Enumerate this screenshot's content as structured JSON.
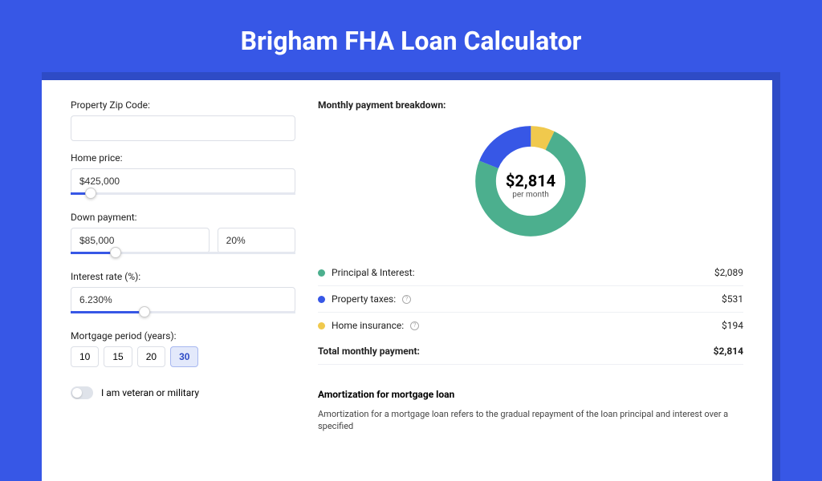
{
  "header": {
    "title": "Brigham FHA Loan Calculator"
  },
  "colors": {
    "page_bg": "#3757e6",
    "shadow_bg": "#2e4bc6",
    "card_bg": "#ffffff",
    "accent": "#3757e6",
    "slice_green": "#4caf8e",
    "slice_blue": "#3757e6",
    "slice_yellow": "#f0c94d",
    "border": "#dcdfe6"
  },
  "form": {
    "zip": {
      "label": "Property Zip Code:",
      "value": ""
    },
    "home_price": {
      "label": "Home price:",
      "value": "$425,000",
      "slider_pos_pct": 9
    },
    "down_payment": {
      "label": "Down payment:",
      "amount": "$85,000",
      "pct": "20%",
      "slider_pos_pct": 20
    },
    "interest_rate": {
      "label": "Interest rate (%):",
      "value": "6.230%",
      "slider_pos_pct": 33
    },
    "period": {
      "label": "Mortgage period (years):",
      "options": [
        "10",
        "15",
        "20",
        "30"
      ],
      "active": "30"
    },
    "veteran": {
      "label": "I am veteran or military",
      "checked": false
    }
  },
  "breakdown": {
    "title": "Monthly payment breakdown:",
    "center": {
      "amount": "$2,814",
      "sub": "per month"
    },
    "rows": [
      {
        "name": "Principal & Interest:",
        "value": "$2,089",
        "color": "#4caf8e",
        "pct": 74,
        "info": false
      },
      {
        "name": "Property taxes:",
        "value": "$531",
        "color": "#3757e6",
        "pct": 19,
        "info": true
      },
      {
        "name": "Home insurance:",
        "value": "$194",
        "color": "#f0c94d",
        "pct": 7,
        "info": true
      }
    ],
    "total": {
      "label": "Total monthly payment:",
      "value": "$2,814"
    }
  },
  "amortization": {
    "title": "Amortization for mortgage loan",
    "body": "Amortization for a mortgage loan refers to the gradual repayment of the loan principal and interest over a specified"
  },
  "donut": {
    "stroke_width": 22,
    "radius": 48
  }
}
